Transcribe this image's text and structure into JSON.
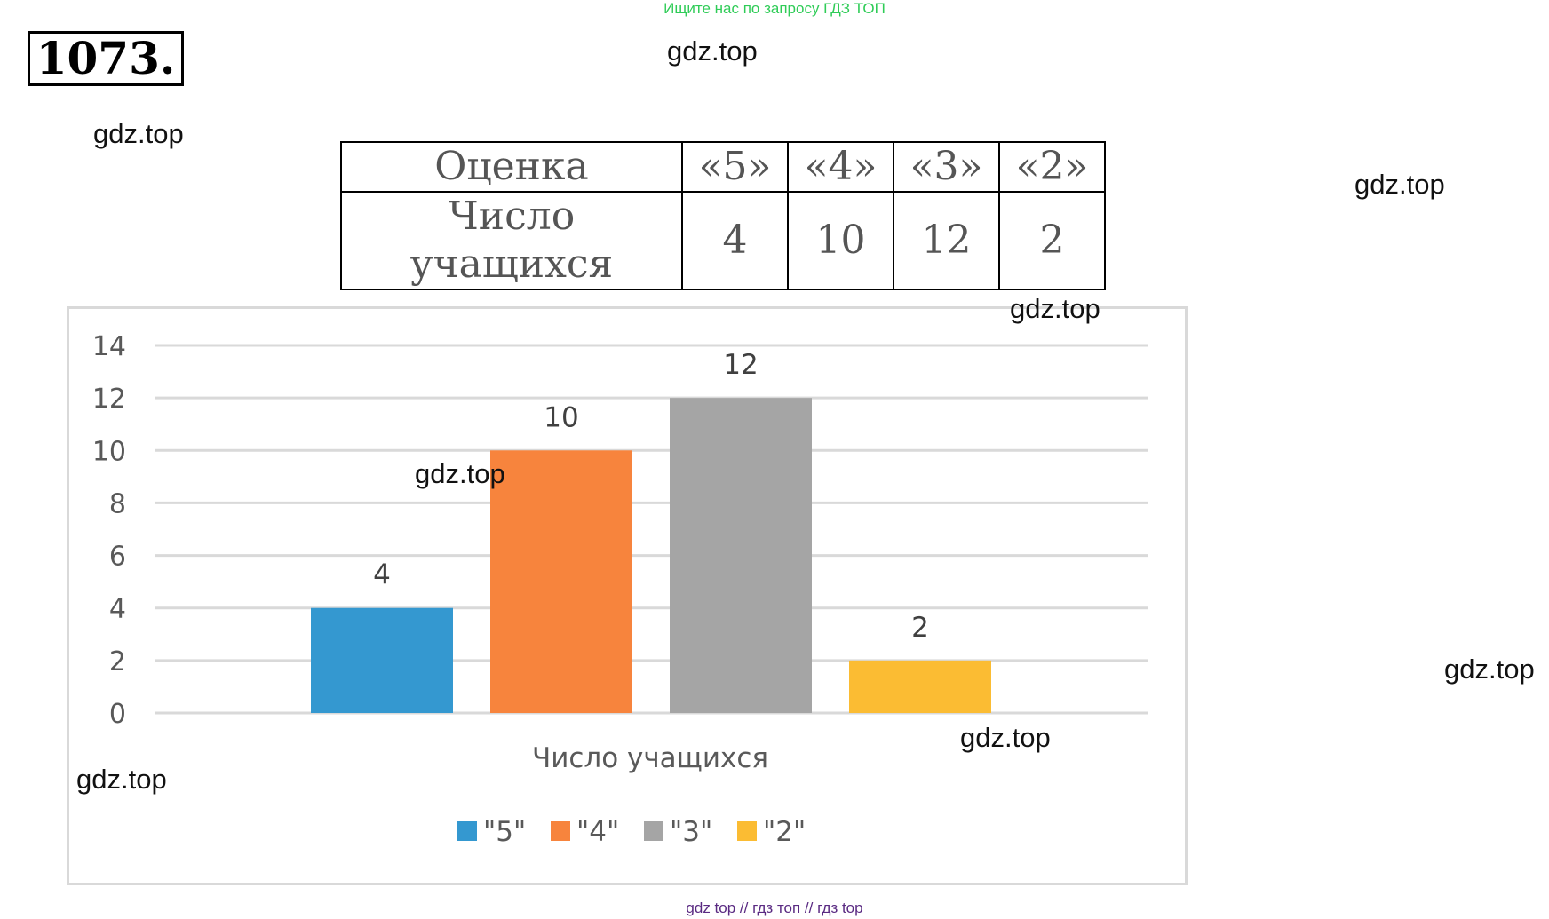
{
  "top_banner": "Ищите нас по запросу ГДЗ ТОП",
  "problem_number": "1073.",
  "watermarks": [
    "gdz.top",
    "gdz.top",
    "gdz.top",
    "gdz.top",
    "gdz.top",
    "gdz.top",
    "gdz.top",
    "gdz.top"
  ],
  "table": {
    "row1_label": "Оценка",
    "row2_label": "Число учащихся",
    "grades": [
      "«5»",
      "«4»",
      "«3»",
      "«2»"
    ],
    "counts": [
      "4",
      "10",
      "12",
      "2"
    ]
  },
  "chart_data": {
    "type": "bar",
    "xlabel": "Число учащихся",
    "ylim": [
      0,
      14
    ],
    "yticks": [
      0,
      2,
      4,
      6,
      8,
      10,
      12,
      14
    ],
    "grid": true,
    "legend_position": "bottom",
    "series": [
      {
        "name": "\"5\"",
        "values": [
          4
        ],
        "color": "#3498d0"
      },
      {
        "name": "\"4\"",
        "values": [
          10
        ],
        "color": "#f7843d"
      },
      {
        "name": "\"3\"",
        "values": [
          12
        ],
        "color": "#a5a5a5"
      },
      {
        "name": "\"2\"",
        "values": [
          2
        ],
        "color": "#fbbc33"
      }
    ]
  },
  "footer": "gdz top  //  гдз топ  //  гдз top"
}
